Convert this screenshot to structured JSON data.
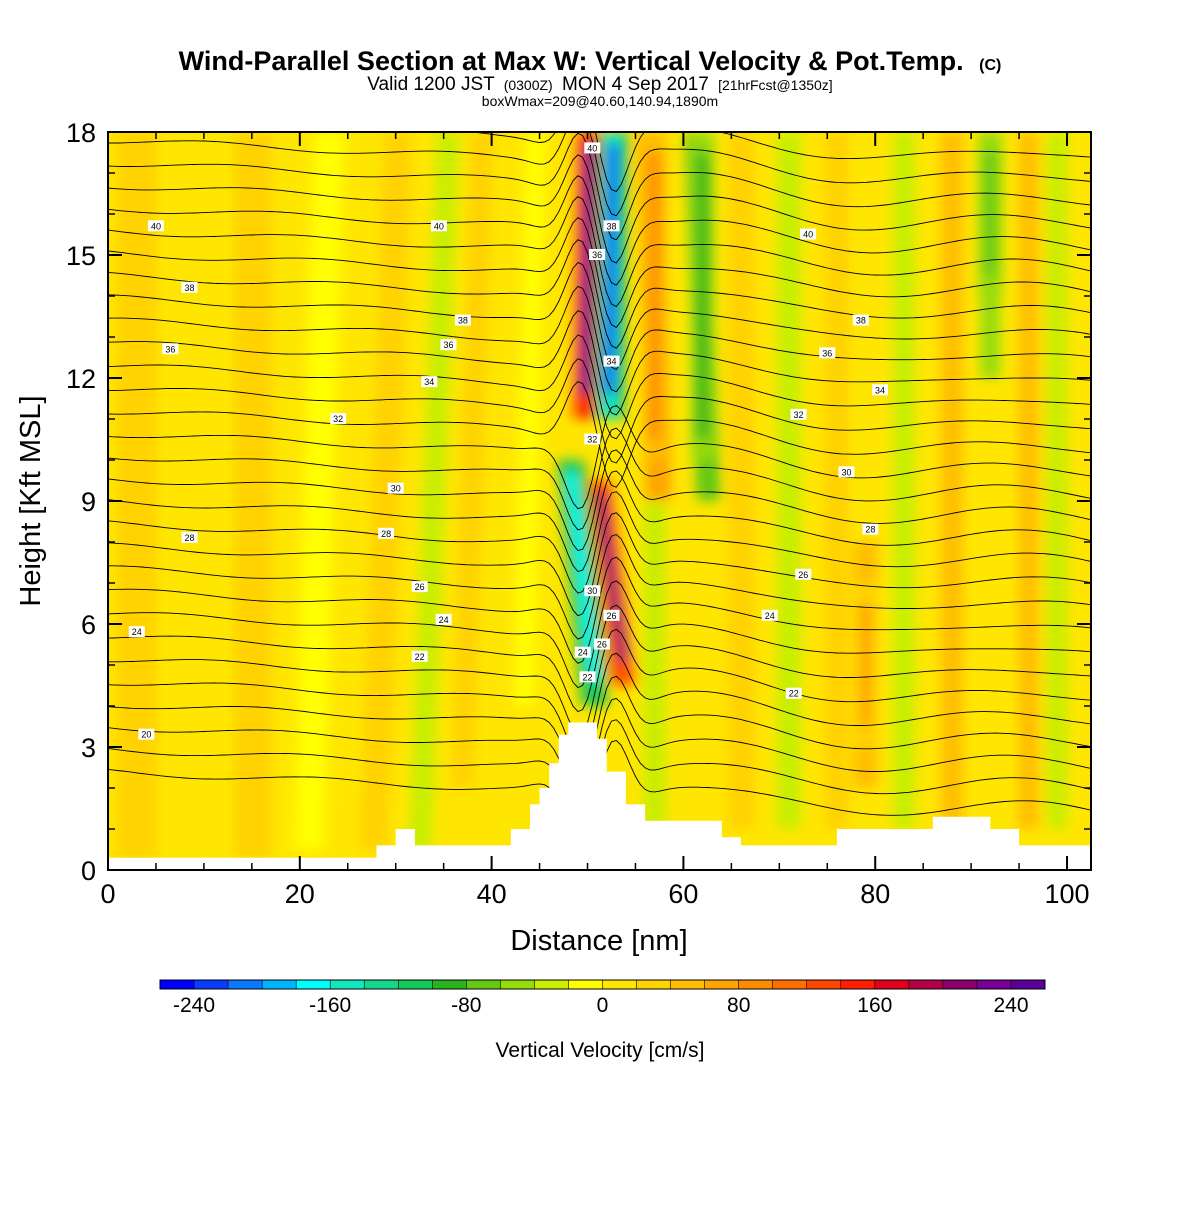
{
  "title": {
    "main": "Wind-Parallel Section at Max W: Vertical Velocity & Pot.Temp.",
    "copyright": "(C)",
    "valid_prefix": "Valid 1200 JST",
    "valid_utc": "(0300Z)",
    "valid_date": "MON 4 Sep 2017",
    "forecast": "[21hrFcst@1350z]",
    "boxline": "boxWmax=209@40.60,140.94,1890m"
  },
  "chart_data": {
    "type": "heatmap",
    "xlabel": "Distance [nm]",
    "ylabel": "Height [Kft MSL]",
    "xlim": [
      0,
      102.5
    ],
    "ylim": [
      0,
      18
    ],
    "x_ticks": [
      0,
      20,
      40,
      60,
      80,
      100
    ],
    "y_ticks": [
      0,
      3,
      6,
      9,
      12,
      15,
      18
    ],
    "colorbar": {
      "label": "Vertical Velocity [cm/s]",
      "min": -260,
      "max": 260,
      "step": 20,
      "tick_values": [
        -240,
        -160,
        -80,
        0,
        80,
        160,
        240
      ],
      "tick_labels": [
        "-240",
        "-160",
        "-80",
        "0",
        "80",
        "160",
        "240"
      ],
      "colors": [
        "#0000ff",
        "#0a3cff",
        "#0a78ff",
        "#00b4ff",
        "#00ffff",
        "#14e6be",
        "#14d78c",
        "#14c85a",
        "#28b41e",
        "#64c814",
        "#96dc0a",
        "#c8ee00",
        "#ffff00",
        "#ffe600",
        "#ffd200",
        "#ffbe00",
        "#ffa500",
        "#ff8c00",
        "#ff6e00",
        "#ff4600",
        "#ff1e00",
        "#e1001e",
        "#b40046",
        "#8c006e",
        "#780096",
        "#5a0096"
      ]
    },
    "wave_features": [
      {
        "kind": "updraft",
        "x": 50.0,
        "y_range": [
          11,
          18
        ],
        "peak": 240
      },
      {
        "kind": "downdraft",
        "x": 52.5,
        "y_range": [
          11,
          18
        ],
        "peak": -240
      },
      {
        "kind": "updraft",
        "x": 52.5,
        "y_range": [
          4.5,
          9.5
        ],
        "peak": 200
      },
      {
        "kind": "downdraft",
        "x": 49.5,
        "y_range": [
          4,
          10
        ],
        "peak": -180
      },
      {
        "kind": "updraft",
        "x": 57,
        "y_range": [
          10,
          18
        ],
        "peak": 80
      },
      {
        "kind": "downdraft",
        "x": 62,
        "y_range": [
          10,
          18
        ],
        "peak": -90
      },
      {
        "kind": "updraft",
        "x": 79,
        "y_range": [
          3,
          7
        ],
        "peak": 60
      },
      {
        "kind": "downdraft",
        "x": 92,
        "y_range": [
          14,
          18
        ],
        "peak": -80
      }
    ],
    "terrain": {
      "x": [
        0,
        5,
        10,
        15,
        20,
        25,
        28,
        30,
        32,
        34,
        38,
        40,
        42,
        44,
        45,
        46,
        47,
        48,
        50,
        51,
        52,
        54,
        56,
        60,
        64,
        66,
        70,
        74,
        76,
        80,
        84,
        86,
        88,
        90,
        92,
        95,
        98,
        102.5
      ],
      "height": [
        0.3,
        0.3,
        0.3,
        0.3,
        0.3,
        0.3,
        0.6,
        1.0,
        0.6,
        0.6,
        0.6,
        0.6,
        1.0,
        1.6,
        2.0,
        2.6,
        3.3,
        3.6,
        3.6,
        3.2,
        2.4,
        1.6,
        1.2,
        1.2,
        0.8,
        0.6,
        0.6,
        0.6,
        1.0,
        1.0,
        1.0,
        1.3,
        1.3,
        1.3,
        1.0,
        0.6,
        0.6,
        0.6
      ]
    },
    "theta_contour_labels": [
      {
        "label": "40",
        "x": 5,
        "y": 15.7
      },
      {
        "label": "40",
        "x": 34.5,
        "y": 15.7
      },
      {
        "label": "40",
        "x": 73,
        "y": 15.5
      },
      {
        "label": "38",
        "x": 8.5,
        "y": 14.2
      },
      {
        "label": "38",
        "x": 37,
        "y": 13.4
      },
      {
        "label": "38",
        "x": 78.5,
        "y": 13.4
      },
      {
        "label": "36",
        "x": 6.5,
        "y": 12.7
      },
      {
        "label": "36",
        "x": 35.5,
        "y": 12.8
      },
      {
        "label": "36",
        "x": 75,
        "y": 12.6
      },
      {
        "label": "34",
        "x": 33.5,
        "y": 11.9
      },
      {
        "label": "34",
        "x": 80.5,
        "y": 11.7
      },
      {
        "label": "32",
        "x": 24,
        "y": 11.0
      },
      {
        "label": "32",
        "x": 72,
        "y": 11.1
      },
      {
        "label": "30",
        "x": 30,
        "y": 9.3
      },
      {
        "label": "30",
        "x": 77,
        "y": 9.7
      },
      {
        "label": "28",
        "x": 8.5,
        "y": 8.1
      },
      {
        "label": "28",
        "x": 29,
        "y": 8.2
      },
      {
        "label": "28",
        "x": 79.5,
        "y": 8.3
      },
      {
        "label": "26",
        "x": 32.5,
        "y": 6.9
      },
      {
        "label": "26",
        "x": 72.5,
        "y": 7.2
      },
      {
        "label": "24",
        "x": 3,
        "y": 5.8
      },
      {
        "label": "24",
        "x": 35,
        "y": 6.1
      },
      {
        "label": "24",
        "x": 69,
        "y": 6.2
      },
      {
        "label": "22",
        "x": 32.5,
        "y": 5.2
      },
      {
        "label": "22",
        "x": 71.5,
        "y": 4.3
      },
      {
        "label": "20",
        "x": 4,
        "y": 3.3
      },
      {
        "label": "40",
        "x": 50.5,
        "y": 17.6
      },
      {
        "label": "38",
        "x": 52.5,
        "y": 15.7
      },
      {
        "label": "36",
        "x": 51,
        "y": 15.0
      },
      {
        "label": "34",
        "x": 52.5,
        "y": 12.4
      },
      {
        "label": "32",
        "x": 50.5,
        "y": 10.5
      },
      {
        "label": "30",
        "x": 50.5,
        "y": 6.8
      },
      {
        "label": "26",
        "x": 52.5,
        "y": 6.2
      },
      {
        "label": "24",
        "x": 49.5,
        "y": 5.3
      },
      {
        "label": "22",
        "x": 50,
        "y": 4.7
      },
      {
        "label": "26",
        "x": 51.5,
        "y": 5.5
      }
    ]
  }
}
